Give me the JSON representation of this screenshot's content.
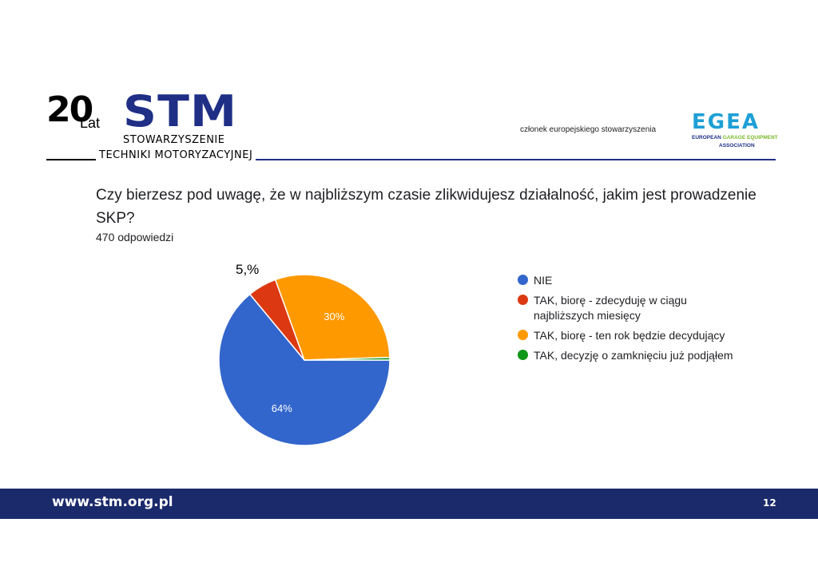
{
  "header": {
    "logo_number": "20",
    "logo_lat": "Lat",
    "logo_word": "STM",
    "logo_line1": "STOWARZYSZENIE",
    "logo_line2": "TECHNIKI MOTORYZACYJNEJ",
    "member_text": "członek europejskiego stowarzyszenia",
    "egea_word": "EGEA",
    "egea_sub_a": "EUROPEAN",
    "egea_sub_b": "GARAGE EQUIPMENT",
    "egea_sub_c": "ASSOCIATION"
  },
  "question": "Czy bierzesz pod uwagę, że w najbliższym czasie zlikwidujesz działalność, jakim jest prowadzenie SKP?",
  "responses": "470 odpowiedzi",
  "callout": "5,%",
  "chart_data": {
    "type": "pie",
    "title": "Czy bierzesz pod uwagę, że w najbliższym czasie zlikwidujesz działalność, jakim jest prowadzenie SKP?",
    "slices": [
      {
        "label": "NIE",
        "value": 64,
        "display": "64%",
        "color": "#3366cc"
      },
      {
        "label": "TAK, biorę - zdecyduję w ciągu najbliższych miesięcy",
        "value": 5.5,
        "display": "",
        "color": "#dc3912"
      },
      {
        "label": "TAK, biorę - ten rok będzie decydujący",
        "value": 30,
        "display": "30%",
        "color": "#ff9900"
      },
      {
        "label": "TAK, decyzję o zamknięciu już podjąłem",
        "value": 0.5,
        "display": "",
        "color": "#109618"
      }
    ],
    "legend_position": "right"
  },
  "footer": {
    "url": "www.stm.org.pl",
    "page": "12"
  }
}
